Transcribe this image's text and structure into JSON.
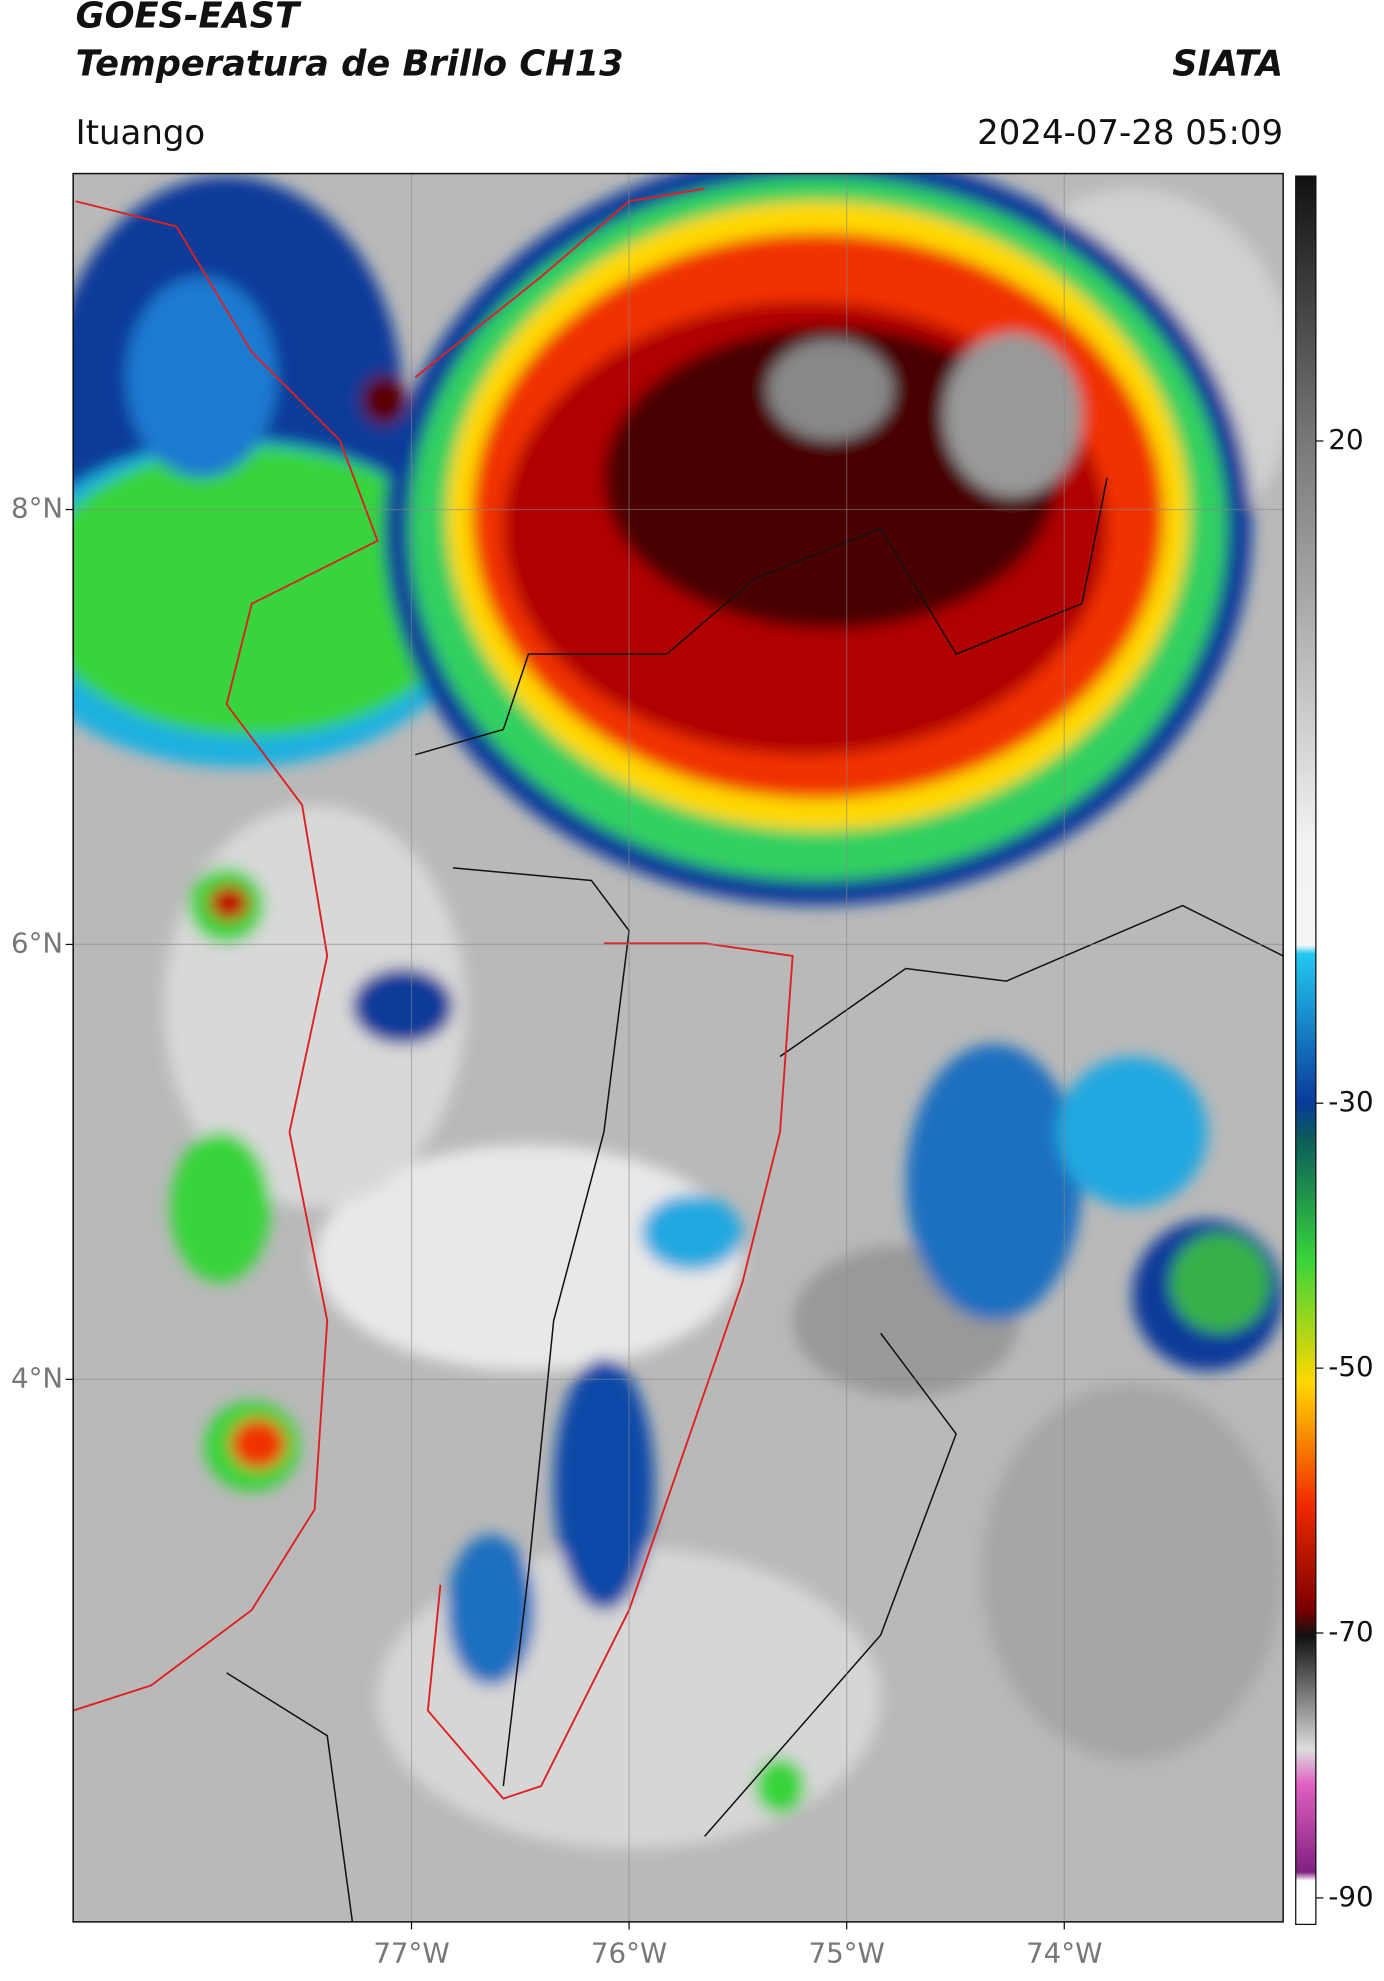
{
  "header": {
    "title": "GOES-EAST",
    "subtitle": "Temperatura de Brillo CH13",
    "source": "SIATA",
    "location": "Ituango",
    "datetime": "2024-07-28 05:09"
  },
  "map": {
    "xlim": [
      -78.555,
      -72.994
    ],
    "ylim": [
      1.505,
      9.545
    ],
    "xticks": [
      {
        "value": -77,
        "label": "77°W"
      },
      {
        "value": -76,
        "label": "76°W"
      },
      {
        "value": -75,
        "label": "75°W"
      },
      {
        "value": -74,
        "label": "74°W"
      }
    ],
    "yticks": [
      {
        "value": 4,
        "label": "4°N"
      },
      {
        "value": 6,
        "label": "6°N"
      },
      {
        "value": 8,
        "label": "8°N"
      }
    ]
  },
  "colorbar": {
    "lim": [
      -92,
      40
    ],
    "ticks": [
      -90,
      -70,
      -50,
      -30,
      20
    ]
  }
}
